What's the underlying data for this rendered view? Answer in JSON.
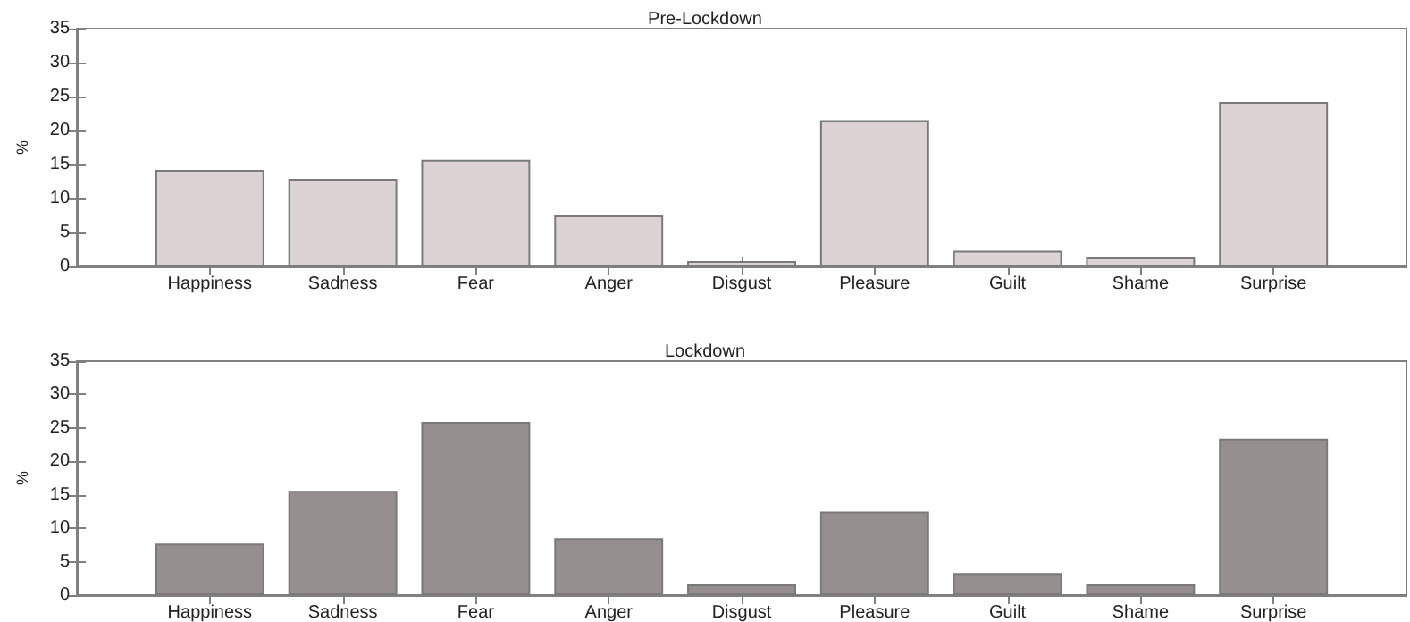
{
  "chart_data": [
    {
      "type": "bar",
      "title": "Pre-Lockdown",
      "ylabel": "%",
      "categories": [
        "Happiness",
        "Sadness",
        "Fear",
        "Anger",
        "Disgust",
        "Pleasure",
        "Guilt",
        "Shame",
        "Surprise"
      ],
      "values": [
        14.2,
        12.9,
        15.7,
        7.5,
        0.8,
        21.5,
        2.3,
        1.3,
        24.2
      ],
      "color": "#dbd3d4",
      "ylim": [
        0,
        35
      ],
      "yticks": [
        0,
        5,
        10,
        15,
        20,
        25,
        30,
        35
      ],
      "grid": false
    },
    {
      "type": "bar",
      "title": "Lockdown",
      "ylabel": "%",
      "categories": [
        "Happiness",
        "Sadness",
        "Fear",
        "Anger",
        "Disgust",
        "Pleasure",
        "Guilt",
        "Shame",
        "Surprise"
      ],
      "values": [
        7.7,
        15.6,
        25.9,
        8.5,
        1.6,
        12.5,
        3.3,
        1.6,
        23.4
      ],
      "color": "#958f8f",
      "ylim": [
        0,
        35
      ],
      "yticks": [
        0,
        5,
        10,
        15,
        20,
        25,
        30,
        35
      ],
      "grid": false
    }
  ]
}
